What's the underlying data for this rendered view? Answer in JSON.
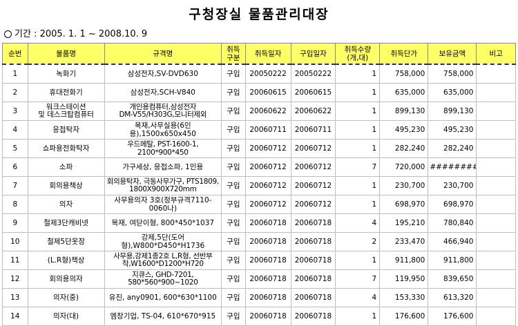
{
  "title": "구청장실 물품관리대장",
  "period_label": "기간 : 2005. 1. 1 ~ 2008.10. 9",
  "headers": [
    "순번",
    "물품명",
    "규격명",
    "취득\n구분",
    "취득일자",
    "구입일자",
    "취득수량\n(개,대)",
    "취득단가",
    "보유금액",
    "비고"
  ],
  "rows": [
    {
      "no": "1",
      "name": "녹화기",
      "spec": "삼성전자,SV-DVD630",
      "method": "구입",
      "acq_date": "20050222",
      "buy_date": "20050222",
      "qty": "1",
      "price": "758,000",
      "amount": "758,000",
      "note": ""
    },
    {
      "no": "2",
      "name": "휴대전화기",
      "spec": "삼성전자,SCH-V840",
      "method": "구입",
      "acq_date": "20060615",
      "buy_date": "20060615",
      "qty": "1",
      "price": "635,000",
      "amount": "635,000",
      "note": ""
    },
    {
      "no": "3",
      "name": "워크스테이션\n및 데스크탑컴퓨터",
      "spec": "개인용컴퓨터,삼성전자\nDM-V55/H303G,모니터제외",
      "method": "구입",
      "acq_date": "20060622",
      "buy_date": "20060622",
      "qty": "1",
      "price": "899,130",
      "amount": "899,130",
      "note": ""
    },
    {
      "no": "4",
      "name": "응접탁자",
      "spec": "목재,사무실용(6인용),1500x650x450",
      "method": "구입",
      "acq_date": "20060711",
      "buy_date": "20060711",
      "qty": "1",
      "price": "495,230",
      "amount": "495,230",
      "note": ""
    },
    {
      "no": "5",
      "name": "쇼파용전화탁자",
      "spec": "우드메탈, PST-1600-1, 2100*900*450",
      "method": "구입",
      "acq_date": "20060712",
      "buy_date": "20060712",
      "qty": "1",
      "price": "282,240",
      "amount": "282,240",
      "note": ""
    },
    {
      "no": "6",
      "name": "소파",
      "spec": "가구세상, 응접소파, 1인용",
      "method": "구입",
      "acq_date": "20060712",
      "buy_date": "20060712",
      "qty": "7",
      "price": "720,000",
      "amount": "########",
      "note": ""
    },
    {
      "no": "7",
      "name": "회의용책상",
      "spec": "회의용탁자, 극동사무가구, PTS1809,\n1800X900X720mm",
      "method": "구입",
      "acq_date": "20060712",
      "buy_date": "20060712",
      "qty": "1",
      "price": "230,700",
      "amount": "230,700",
      "note": ""
    },
    {
      "no": "8",
      "name": "의자",
      "spec": "사무용의자 3호(정부규격7110-0060나)",
      "method": "구입",
      "acq_date": "20060712",
      "buy_date": "20060712",
      "qty": "1",
      "price": "698,970",
      "amount": "698,970",
      "note": ""
    },
    {
      "no": "9",
      "name": "철제3단캐비넷",
      "spec": "목재, 여닫이형, 800*450*1037",
      "method": "구입",
      "acq_date": "20060718",
      "buy_date": "20060718",
      "qty": "4",
      "price": "195,210",
      "amount": "780,840",
      "note": ""
    },
    {
      "no": "10",
      "name": "철제5단옷장",
      "spec": "강제,5단(도어형),W800*D450*H1736",
      "method": "구입",
      "acq_date": "20060718",
      "buy_date": "20060718",
      "qty": "2",
      "price": "233,470",
      "amount": "466,940",
      "note": ""
    },
    {
      "no": "11",
      "name": "(L.R형)책상",
      "spec": "사무용,강제1종2호 L,R형, 선반부\n착,W1600*D1200*H720",
      "method": "구입",
      "acq_date": "20060718",
      "buy_date": "20060718",
      "qty": "1",
      "price": "911,800",
      "amount": "911,800",
      "note": ""
    },
    {
      "no": "12",
      "name": "회의용의자",
      "spec": "지큐스, GHD-7201,\n580*560*900~1020",
      "method": "구입",
      "acq_date": "20060718",
      "buy_date": "20060718",
      "qty": "7",
      "price": "119,950",
      "amount": "839,650",
      "note": ""
    },
    {
      "no": "13",
      "name": "의자(중)",
      "spec": "유진, any0901, 600*630*1100",
      "method": "구입",
      "acq_date": "20060718",
      "buy_date": "20060718",
      "qty": "4",
      "price": "153,330",
      "amount": "613,320",
      "note": ""
    },
    {
      "no": "14",
      "name": "의자(대)",
      "spec": "엠창기업, TS-04, 610*670*915",
      "method": "구입",
      "acq_date": "20060718",
      "buy_date": "20060718",
      "qty": "1",
      "price": "176,600",
      "amount": "176,600",
      "note": ""
    }
  ]
}
